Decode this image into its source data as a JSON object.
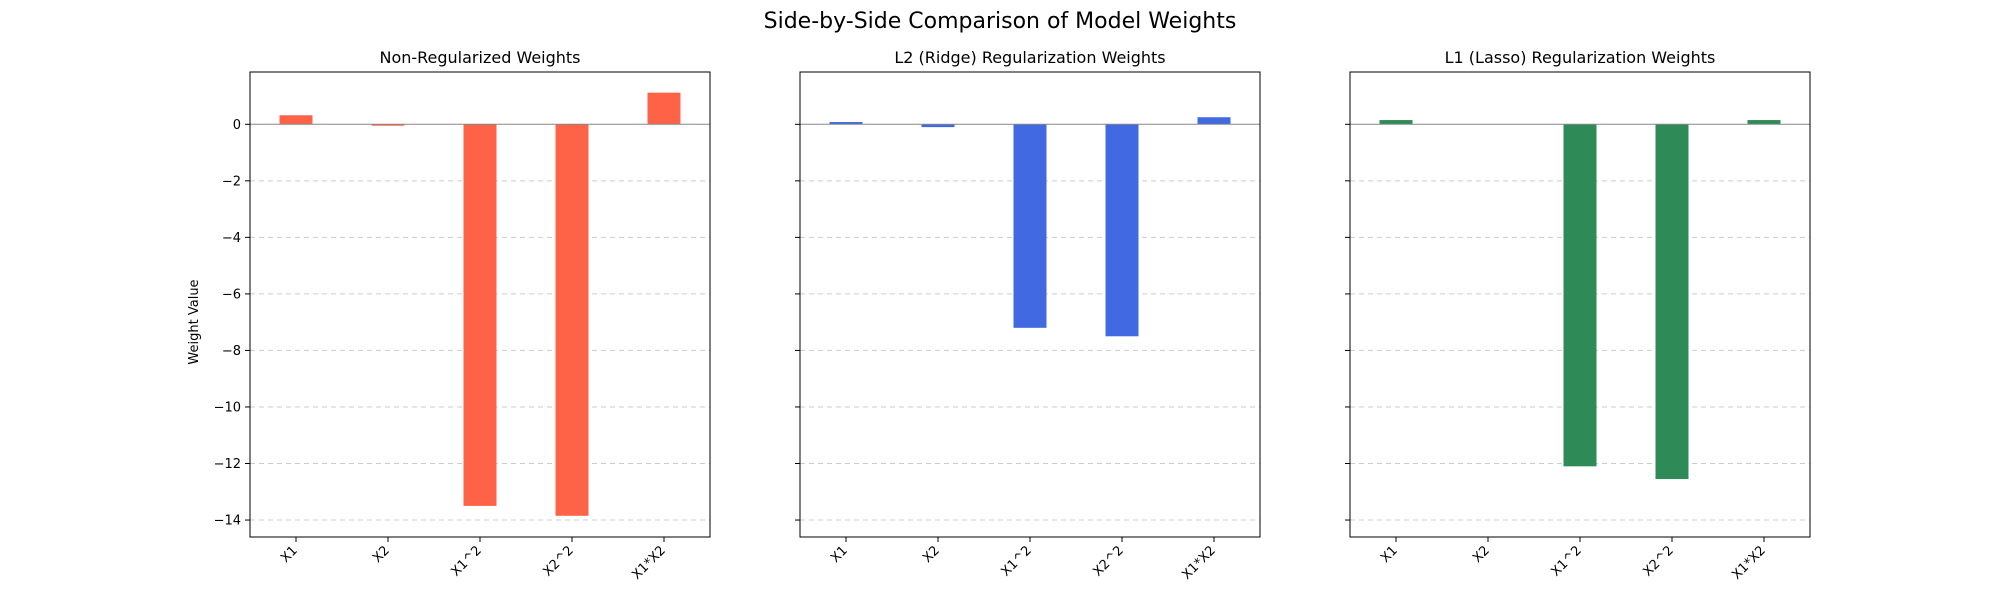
{
  "chart_data": {
    "title": "Side-by-Side Comparison of Model Weights",
    "type": "bar",
    "ylabel": "Weight Value",
    "ylim": [
      -14.6,
      1.85
    ],
    "yticks": [
      0,
      -2,
      -4,
      -6,
      -8,
      -10,
      -12,
      -14
    ],
    "grid": "y-dashed",
    "shared_y": true,
    "categories": [
      "X1",
      "X2",
      "X1^2",
      "X2^2",
      "X1*X2"
    ],
    "panels": [
      {
        "title": "Non-Regularized Weights",
        "color": "#ff6347",
        "values": [
          0.32,
          -0.05,
          -13.5,
          -13.85,
          1.12
        ]
      },
      {
        "title": "L2 (Ridge) Regularization Weights",
        "color": "#4169e1",
        "values": [
          0.08,
          -0.1,
          -7.2,
          -7.5,
          0.25
        ]
      },
      {
        "title": "L1 (Lasso) Regularization Weights",
        "color": "#2e8b57",
        "values": [
          0.15,
          0.0,
          -12.1,
          -12.55,
          0.15
        ]
      }
    ]
  }
}
